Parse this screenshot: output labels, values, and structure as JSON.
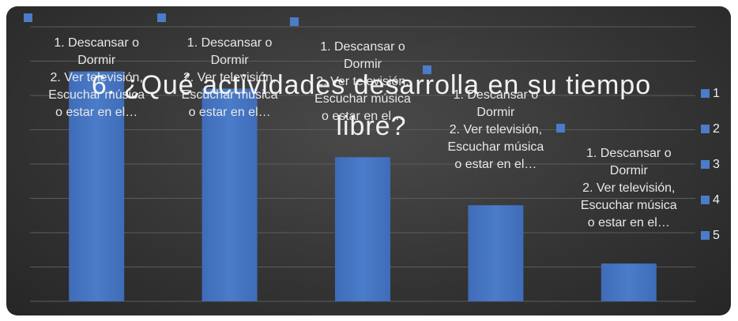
{
  "chart_data": {
    "type": "bar",
    "title": "6. ¿Qué actividades desarrolla en su tiempo libre?",
    "categories": [
      "1",
      "2",
      "3",
      "4",
      "5"
    ],
    "values": [
      6.7,
      6.2,
      4.2,
      2.8,
      1.1
    ],
    "data_label": "1. Descansar o\nDormir\n2. Ver  televisión,\nEscuchar música\no estar en el…",
    "color": "#4a7cc9",
    "ylim": [
      0,
      8
    ],
    "yticks": [
      0,
      1,
      2,
      3,
      4,
      5,
      6,
      7,
      8
    ],
    "grid": true,
    "legend": "right"
  }
}
